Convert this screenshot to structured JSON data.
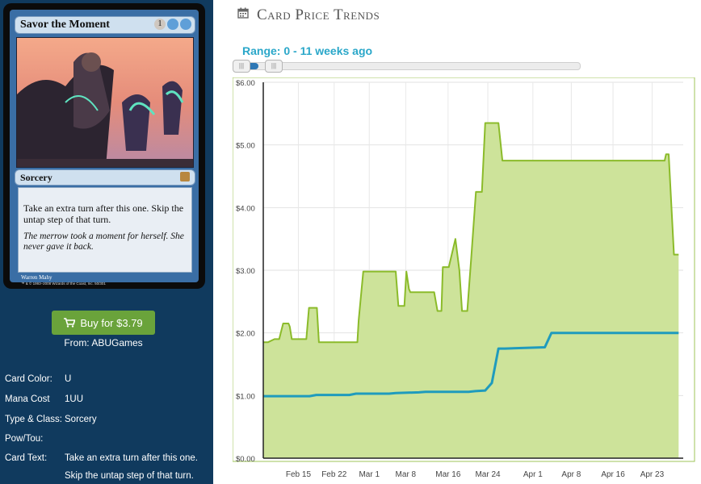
{
  "card": {
    "name": "Savor the Moment",
    "mana": [
      {
        "symbol": "1",
        "color": "generic"
      },
      {
        "symbol": "",
        "color": "blue"
      },
      {
        "symbol": "",
        "color": "blue"
      }
    ],
    "type_line": "Sorcery",
    "rules_text": "Take an extra turn after this one. Skip the untap step of that turn.",
    "flavor_text": "The merrow took a moment for herself. She never gave it back.",
    "artist": "Warren Mahy",
    "copyright": "™ & © 1993–2008 Wizards of the Coast, Inc. 50/301"
  },
  "buy": {
    "label": "Buy for $3.79",
    "from": "From: ABUGames"
  },
  "info": {
    "color_label": "Card Color:",
    "color_value": "U",
    "mana_label": "Mana Cost",
    "mana_value": "1UU",
    "type_label": "Type & Class:",
    "type_value": "Sorcery",
    "pt_label": "Pow/Tou:",
    "pt_value": "",
    "text_label": "Card Text:",
    "text_value_1": "Take an extra turn after this one.",
    "text_value_2": "Skip the untap step of that turn."
  },
  "trends": {
    "title": "Card Price Trends",
    "range_label": "Range: 0 - 11 weeks ago"
  },
  "colors": {
    "sidebar": "#103a5e",
    "green_fill": "#cde39a",
    "green_line": "#8bbb2a",
    "blue_line": "#1f9bbd"
  },
  "chart_data": {
    "type": "area",
    "y_ticks": [
      "$0.00",
      "$1.00",
      "$2.00",
      "$3.00",
      "$4.00",
      "$5.00",
      "$6.00"
    ],
    "x_ticks": [
      "Feb 15",
      "Feb 22",
      "Mar 1",
      "Mar 8",
      "Mar 16",
      "Mar 24",
      "Apr 1",
      "Apr 8",
      "Apr 16",
      "Apr 23"
    ],
    "ylim": [
      0,
      6
    ],
    "grid": true,
    "series": [
      {
        "color": "#8bbb2a",
        "fill": true,
        "x": [
          0,
          0.7,
          1.7,
          2.4,
          3.0,
          3.8,
          4.0,
          4.3,
          4.6,
          4.9,
          6.5,
          6.9,
          7.6,
          8.1,
          8.4,
          9.3,
          12.2,
          12.4,
          13.6,
          14.2,
          14.4,
          15.1,
          15.6,
          15.9,
          20.0,
          20.4,
          21.3,
          21.6,
          22.0,
          22.2,
          23.3,
          24.5,
          25.0,
          25.8,
          26.3,
          26.9,
          27.1,
          28.0,
          29.0,
          29.6,
          30.0,
          30.8,
          31.4,
          32.1,
          32.4,
          33.0,
          33.5,
          35.5,
          36.1,
          36.5,
          37.0,
          37.3,
          47.0,
          54.7,
          58.0,
          59.6,
          60.6,
          60.8,
          61.2,
          62.0,
          62.7
        ],
        "values": [
          1.85,
          1.85,
          1.9,
          1.9,
          2.15,
          2.15,
          2.1,
          1.9,
          1.9,
          1.9,
          1.9,
          2.4,
          2.4,
          2.4,
          1.85,
          1.85,
          1.85,
          1.85,
          1.85,
          1.85,
          2.2,
          2.98,
          2.98,
          2.98,
          2.98,
          2.43,
          2.43,
          2.98,
          2.7,
          2.65,
          2.65,
          2.65,
          2.65,
          2.65,
          2.35,
          2.35,
          3.05,
          3.05,
          3.5,
          3.0,
          2.35,
          2.35,
          3.2,
          4.25,
          4.25,
          4.25,
          5.35,
          5.35,
          4.75,
          4.75,
          4.75,
          4.75,
          4.75,
          4.75,
          4.75,
          4.75,
          4.75,
          4.85,
          4.85,
          3.25,
          3.25
        ]
      },
      {
        "color": "#1f9bbd",
        "fill": false,
        "x": [
          0,
          7.0,
          8.0,
          13.0,
          14.0,
          19.0,
          20.0,
          23.5,
          24.5,
          31.0,
          32.0,
          33.5,
          34.5,
          35.5,
          36.5,
          42.5,
          43.5,
          62.7
        ],
        "values": [
          0.99,
          0.99,
          1.01,
          1.01,
          1.03,
          1.03,
          1.04,
          1.05,
          1.06,
          1.06,
          1.07,
          1.08,
          1.2,
          1.75,
          1.75,
          1.77,
          2.0,
          2.0
        ]
      }
    ],
    "x_tick_positions": [
      5.3,
      10.7,
      16.0,
      21.5,
      27.9,
      33.9,
      40.7,
      46.5,
      52.8,
      58.7
    ],
    "x_range": [
      0,
      63.4
    ]
  }
}
